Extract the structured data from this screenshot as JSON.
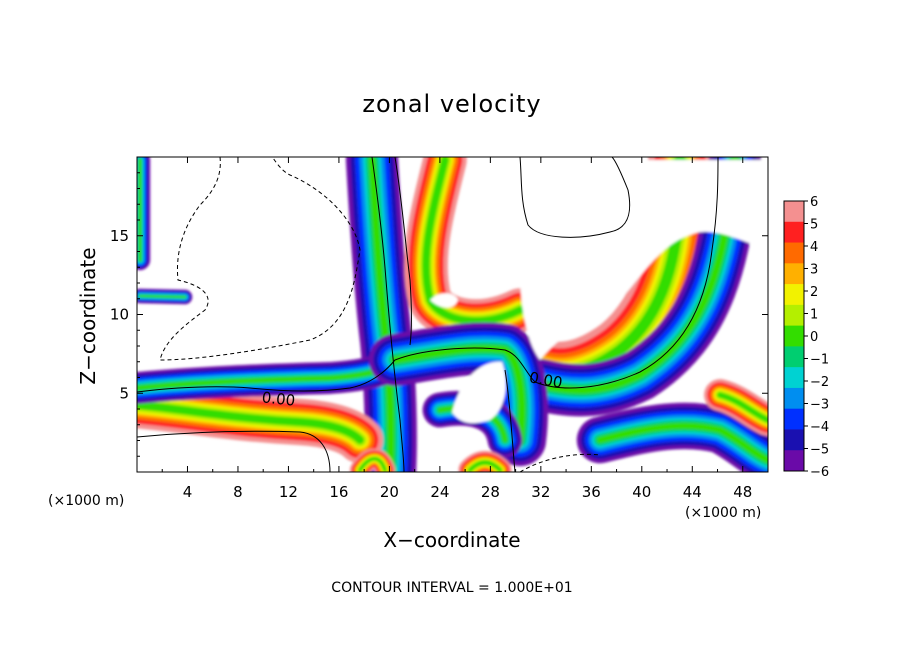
{
  "chart_data": {
    "type": "heatmap",
    "title": "zonal velocity",
    "xlabel": "X−coordinate",
    "ylabel": "Z−coordinate",
    "x_unit_label": "(×1000 m)",
    "x_unit_label_left": "(×1000 m)",
    "xlim": [
      0,
      50
    ],
    "ylim": [
      0,
      20
    ],
    "x_ticks": [
      "4",
      "8",
      "12",
      "16",
      "20",
      "24",
      "28",
      "32",
      "36",
      "40",
      "44",
      "48"
    ],
    "x_tick_values": [
      4,
      8,
      12,
      16,
      20,
      24,
      28,
      32,
      36,
      40,
      44,
      48
    ],
    "y_ticks": [
      "5",
      "10",
      "15"
    ],
    "y_tick_values": [
      5,
      10,
      15
    ],
    "contour_labels": [
      "0.00",
      "0.00"
    ],
    "footnote": "CONTOUR INTERVAL = 1.000E+01",
    "colorbar": {
      "labels": [
        "6",
        "5",
        "4",
        "3",
        "2",
        "1",
        "0",
        "−1",
        "−2",
        "−3",
        "−4",
        "−5",
        "−6"
      ],
      "colors": [
        "#f49090",
        "#ff2020",
        "#ff6a00",
        "#ffb000",
        "#f2f200",
        "#b4ef00",
        "#33dd00",
        "#00ce70",
        "#00d2d2",
        "#008ef0",
        "#0030ff",
        "#1a10b0",
        "#6a0aa8"
      ],
      "range": [
        -6,
        6
      ]
    }
  }
}
